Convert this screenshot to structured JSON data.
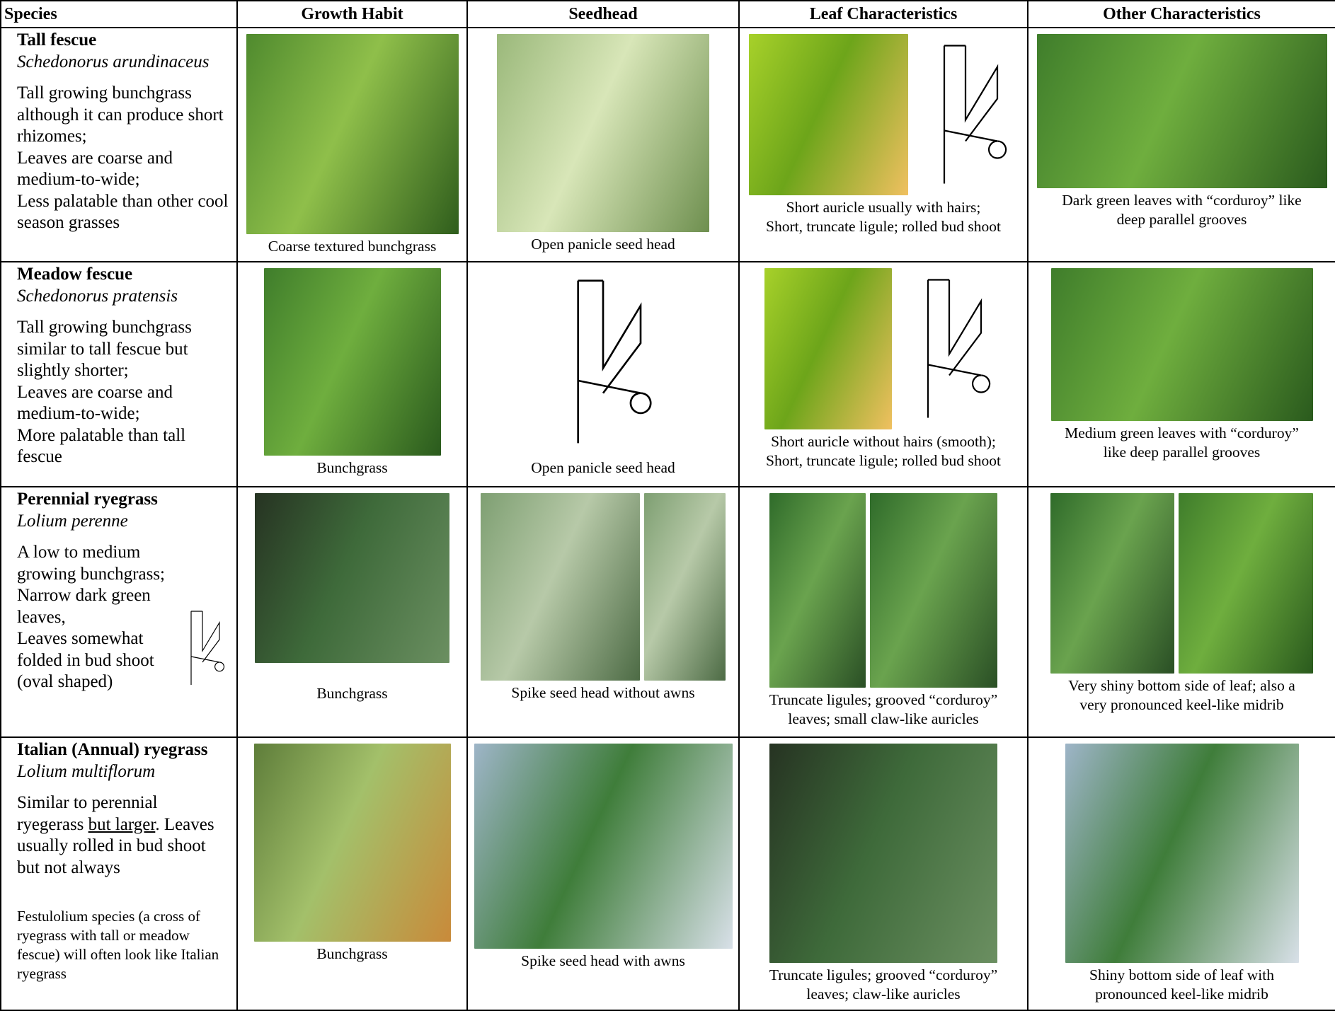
{
  "header": {
    "columns": [
      "Species",
      "Growth Habit",
      "Seedhead",
      "Leaf Characteristics",
      "Other Characteristics"
    ]
  },
  "rows": [
    {
      "name": "Tall fescue",
      "latin": "Schedonorus arundinaceus",
      "description": [
        "Tall growing bunchgrass although it can produce short rhizomes;",
        "Leaves are coarse and medium-to-wide;",
        "Less palatable than other cool season grasses"
      ],
      "growth_caption": [
        "Coarse textured bunchgrass"
      ],
      "seedhead_caption": [
        "Open panicle seed head"
      ],
      "leaf_caption": [
        "Short auricle usually with hairs;",
        "Short, truncate ligule;  rolled bud shoot"
      ],
      "other_caption": [
        "Dark green leaves with “corduroy” like",
        "deep parallel grooves"
      ]
    },
    {
      "name": "Meadow fescue",
      "latin": "Schedonorus pratensis",
      "description": [
        "Tall growing bunchgrass similar to tall fescue but slightly shorter;",
        "Leaves are coarse and medium-to-wide;",
        "More palatable than tall fescue"
      ],
      "growth_caption": [
        "Bunchgrass"
      ],
      "seedhead_caption": [
        "Open panicle seed head"
      ],
      "leaf_caption": [
        "Short auricle without hairs (smooth);",
        "Short, truncate ligule; rolled bud shoot"
      ],
      "other_caption": [
        "Medium green leaves with “corduroy”",
        "like deep parallel grooves"
      ]
    },
    {
      "name": "Perennial ryegrass",
      "latin": "Lolium perenne",
      "description": [
        "A low to medium growing bunchgrass;",
        "Narrow dark green leaves,",
        "Leaves somewhat folded in bud shoot (oval shaped)"
      ],
      "growth_caption": [
        "Bunchgrass"
      ],
      "seedhead_caption": [
        "Spike seed head without awns"
      ],
      "leaf_caption": [
        "Truncate ligules; grooved “corduroy”",
        "leaves; small claw-like auricles"
      ],
      "other_caption": [
        "Very shiny bottom side of leaf; also a",
        "very pronounced keel-like midrib"
      ]
    },
    {
      "name": "Italian (Annual) ryegrass",
      "latin": "Lolium multiflorum",
      "description": [
        "Similar to perennial ryegerass",
        "but larger",
        ". Leaves usually rolled in bud shoot but not always"
      ],
      "note": "Festulolium species (a cross of ryegrass with tall or meadow fescue) will often look like Italian ryegrass",
      "growth_caption": [
        "Bunchgrass"
      ],
      "seedhead_caption": [
        "Spike seed head with awns"
      ],
      "leaf_caption": [
        "Truncate ligules; grooved “corduroy”",
        "leaves;  claw-like auricles"
      ],
      "other_caption": [
        "Shiny bottom side of leaf with",
        "pronounced keel-like midrib"
      ]
    }
  ]
}
